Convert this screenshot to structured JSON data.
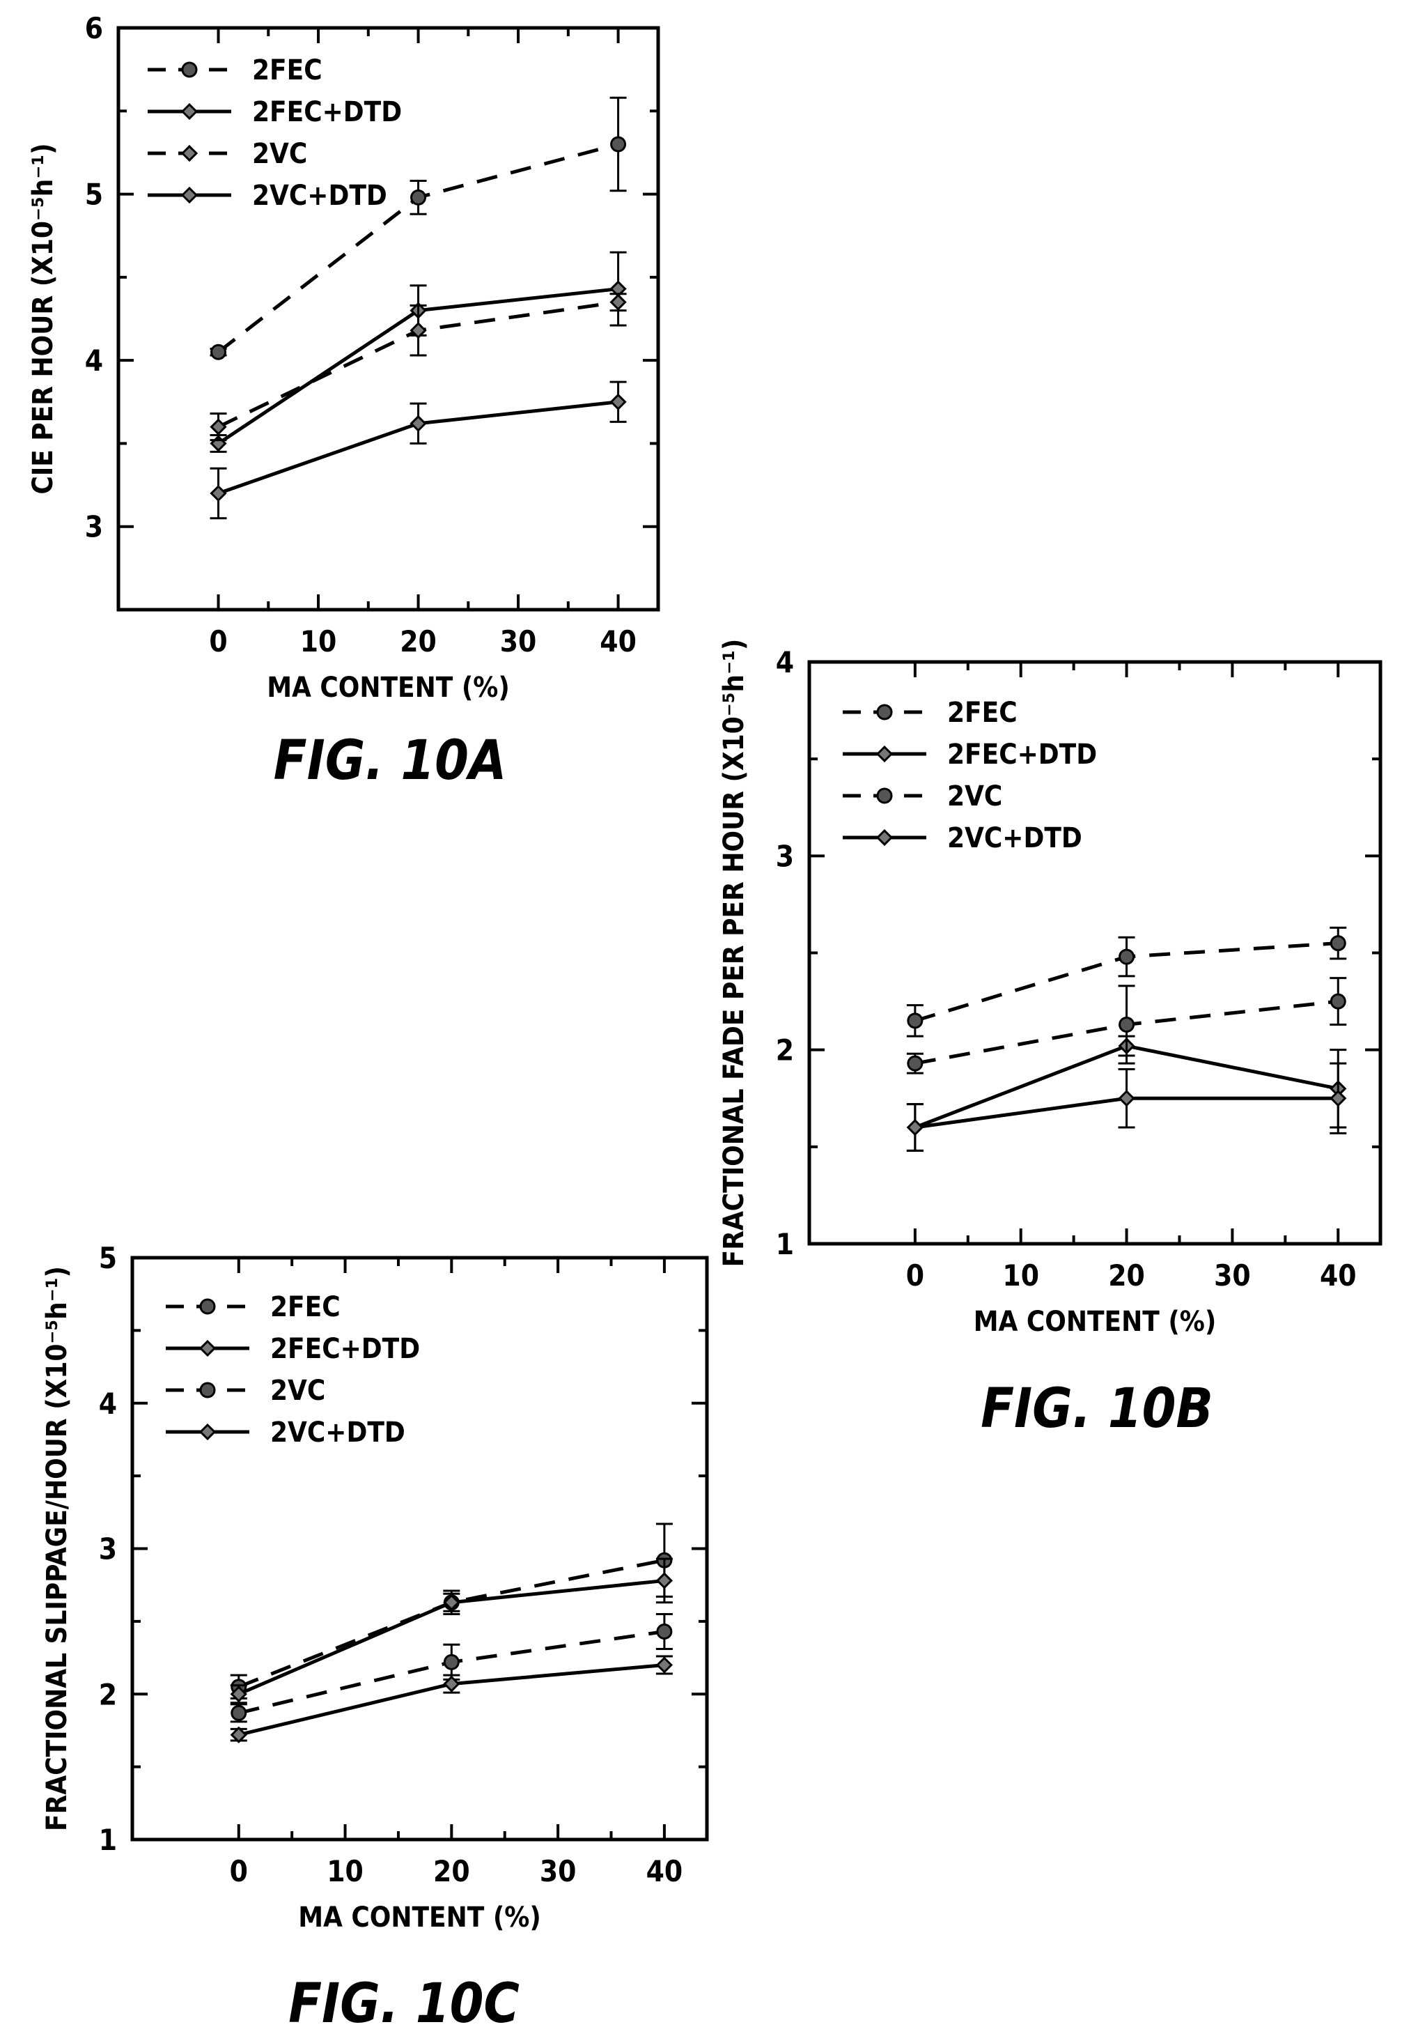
{
  "chart_data": [
    {
      "type": "line",
      "figure_label": "FIG. 10A",
      "xlabel": "MA CONTENT (%)",
      "ylabel": "CIE PER HOUR (X10⁻⁵h⁻¹)",
      "xlim": [
        -10,
        44
      ],
      "ylim": [
        2.5,
        6
      ],
      "xticks": [
        0,
        10,
        20,
        30,
        40
      ],
      "yticks": [
        3,
        4,
        5,
        6
      ],
      "x": [
        0,
        20,
        40
      ],
      "legend_position": "top-left",
      "series": [
        {
          "name": "2FEC",
          "style": "dashed",
          "marker": "circle",
          "values": [
            4.05,
            4.98,
            5.3
          ],
          "errors": [
            0.02,
            0.1,
            0.28
          ]
        },
        {
          "name": "2FEC+DTD",
          "style": "solid",
          "marker": "diamond",
          "values": [
            3.5,
            4.3,
            4.43
          ],
          "errors": [
            0.05,
            0.15,
            0.22
          ]
        },
        {
          "name": "2VC",
          "style": "dashed",
          "marker": "diamond",
          "values": [
            3.6,
            4.18,
            4.35
          ],
          "errors": [
            0.08,
            0.15,
            0.05
          ]
        },
        {
          "name": "2VC+DTD",
          "style": "solid",
          "marker": "diamond",
          "values": [
            3.2,
            3.62,
            3.75
          ],
          "errors": [
            0.15,
            0.12,
            0.12
          ]
        }
      ]
    },
    {
      "type": "line",
      "figure_label": "FIG. 10B",
      "xlabel": "MA CONTENT (%)",
      "ylabel": "FRACTIONAL FADE PER PER HOUR (X10⁻⁵h⁻¹)",
      "xlim": [
        -10,
        44
      ],
      "ylim": [
        1,
        4
      ],
      "xticks": [
        0,
        10,
        20,
        30,
        40
      ],
      "yticks": [
        1,
        2,
        3,
        4
      ],
      "x": [
        0,
        20,
        40
      ],
      "legend_position": "top-left",
      "series": [
        {
          "name": "2FEC",
          "style": "dashed",
          "marker": "circle",
          "values": [
            2.15,
            2.48,
            2.55
          ],
          "errors": [
            0.08,
            0.1,
            0.08
          ]
        },
        {
          "name": "2FEC+DTD",
          "style": "solid",
          "marker": "diamond",
          "values": [
            1.6,
            2.02,
            1.8
          ],
          "errors": [
            0.12,
            0.05,
            0.2
          ]
        },
        {
          "name": "2VC",
          "style": "dashed",
          "marker": "circle",
          "values": [
            1.93,
            2.13,
            2.25
          ],
          "errors": [
            0.05,
            0.2,
            0.12
          ]
        },
        {
          "name": "2VC+DTD",
          "style": "solid",
          "marker": "diamond",
          "values": [
            1.6,
            1.75,
            1.75
          ],
          "errors": [
            0.12,
            0.15,
            0.18
          ]
        }
      ]
    },
    {
      "type": "line",
      "figure_label": "FIG. 10C",
      "xlabel": "MA CONTENT (%)",
      "ylabel": "FRACTIONAL SLIPPAGE/HOUR (X10⁻⁵h⁻¹)",
      "xlim": [
        -10,
        44
      ],
      "ylim": [
        1,
        5
      ],
      "xticks": [
        0,
        10,
        20,
        30,
        40
      ],
      "yticks": [
        1,
        2,
        3,
        4,
        5
      ],
      "x": [
        0,
        20,
        40
      ],
      "legend_position": "top-left",
      "series": [
        {
          "name": "2FEC",
          "style": "dashed",
          "marker": "circle",
          "values": [
            2.05,
            2.63,
            2.92
          ],
          "errors": [
            0.08,
            0.08,
            0.25
          ]
        },
        {
          "name": "2FEC+DTD",
          "style": "solid",
          "marker": "diamond",
          "values": [
            2.0,
            2.63,
            2.78
          ],
          "errors": [
            0.06,
            0.06,
            0.15
          ]
        },
        {
          "name": "2VC",
          "style": "dashed",
          "marker": "circle",
          "values": [
            1.87,
            2.22,
            2.43
          ],
          "errors": [
            0.06,
            0.12,
            0.12
          ]
        },
        {
          "name": "2VC+DTD",
          "style": "solid",
          "marker": "diamond",
          "values": [
            1.72,
            2.07,
            2.2
          ],
          "errors": [
            0.04,
            0.06,
            0.06
          ]
        }
      ]
    }
  ]
}
